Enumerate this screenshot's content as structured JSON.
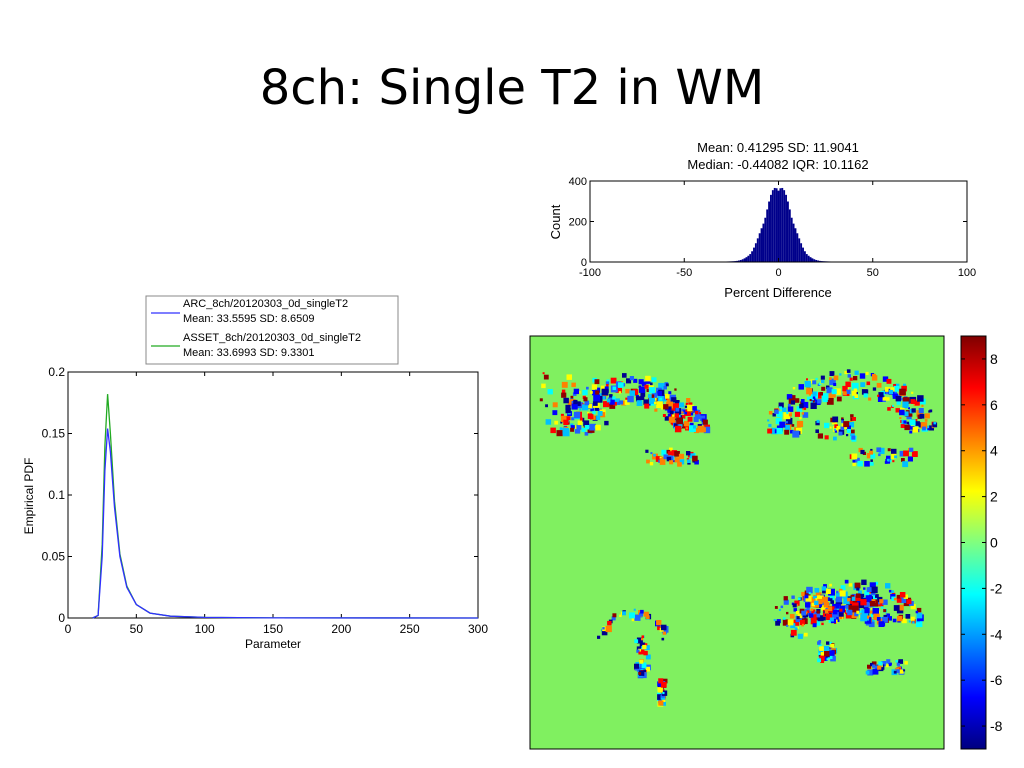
{
  "slide": {
    "title": "8ch: Single T2 in WM"
  },
  "chart_data": [
    {
      "type": "bar",
      "title_lines": [
        "Mean: 0.41295 SD: 11.9041",
        "Median: -0.44082 IQR: 10.1162"
      ],
      "xlabel": "Percent Difference",
      "ylabel": "Count",
      "xlim": [
        -100,
        100
      ],
      "ylim": [
        0,
        400
      ],
      "xticks": [
        -100,
        -50,
        0,
        50,
        100
      ],
      "yticks": [
        0,
        200,
        400
      ],
      "color": "#00008b",
      "distribution": {
        "center": 0,
        "peak_count": 380,
        "spread": 7
      }
    },
    {
      "type": "line",
      "xlabel": "Parameter",
      "ylabel": "Empirical PDF",
      "xlim": [
        0,
        300
      ],
      "ylim": [
        0,
        0.2
      ],
      "xticks": [
        0,
        50,
        100,
        150,
        200,
        250,
        300
      ],
      "yticks": [
        0,
        0.05,
        0.1,
        0.15,
        0.2
      ],
      "legend_position": "top",
      "series": [
        {
          "name": "ARC_8ch/20120303_0d_singleT2",
          "stats": "Mean: 33.5595 SD: 8.6509",
          "color": "#3030ff",
          "x": [
            18,
            22,
            25,
            27,
            29,
            31,
            34,
            38,
            43,
            50,
            60,
            75,
            100,
            150,
            300
          ],
          "y": [
            0,
            0.002,
            0.05,
            0.12,
            0.154,
            0.135,
            0.09,
            0.05,
            0.025,
            0.011,
            0.004,
            0.0015,
            0.0005,
            0.0001,
            0
          ]
        },
        {
          "name": "ASSET_8ch/20120303_0d_singleT2",
          "stats": "Mean: 33.6993 SD: 9.3301",
          "color": "#22aa22",
          "x": [
            18,
            22,
            25,
            27,
            29,
            31,
            34,
            38,
            43,
            50,
            60,
            75,
            100,
            150,
            300
          ],
          "y": [
            0,
            0.002,
            0.06,
            0.14,
            0.182,
            0.15,
            0.095,
            0.052,
            0.026,
            0.011,
            0.004,
            0.0015,
            0.0005,
            0.0001,
            0
          ]
        }
      ]
    },
    {
      "type": "heatmap",
      "colormap": "jet",
      "background_color": "#80f060",
      "colorbar_range": [
        -9,
        9
      ],
      "colorbar_ticks": [
        8,
        6,
        4,
        2,
        0,
        -2,
        -4,
        -6,
        -8
      ]
    }
  ]
}
